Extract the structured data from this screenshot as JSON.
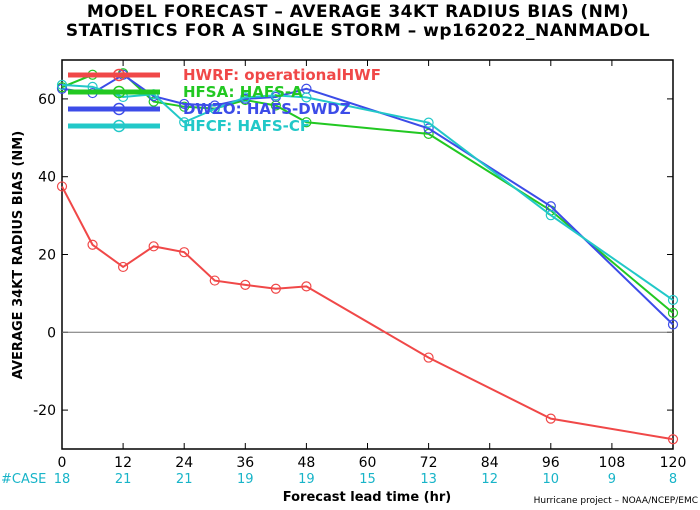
{
  "chart_data": {
    "type": "line",
    "title": "MODEL FORECAST – AVERAGE 34KT RADIUS BIAS (NM)",
    "subtitle": "STATISTICS FOR A SINGLE STORM – wp162022_NANMADOL",
    "xlabel": "Forecast lead time (hr)",
    "ylabel": "AVERAGE 34KT RADIUS BIAS (NM)",
    "xlim": [
      0,
      120
    ],
    "ylim": [
      -30,
      70
    ],
    "x_ticks": [
      0,
      12,
      24,
      36,
      48,
      60,
      72,
      84,
      96,
      108,
      120
    ],
    "y_ticks": [
      -20,
      0,
      20,
      40,
      60
    ],
    "case_label": "#CASE",
    "case_counts": [
      "18",
      "21",
      "21",
      "19",
      "19",
      "15",
      "13",
      "12",
      "10",
      "9",
      "8"
    ],
    "footer": "Hurricane project – NOAA/NCEP/EMC",
    "series": [
      {
        "name": "HWRF: operationalHWF",
        "color": "#f04848",
        "x": [
          0,
          6,
          12,
          18,
          24,
          30,
          36,
          42,
          48,
          72,
          96,
          120
        ],
        "y": [
          37.5,
          22.5,
          16.8,
          22.1,
          20.6,
          13.3,
          12.2,
          11.2,
          11.8,
          -6.5,
          -22.2,
          -27.5
        ]
      },
      {
        "name": "HFSA: HAFS-A",
        "color": "#22c822",
        "x": [
          0,
          6,
          12,
          18,
          24,
          30,
          36,
          42,
          48,
          72,
          96,
          120
        ],
        "y": [
          63.0,
          66.2,
          66.6,
          59.3,
          58.0,
          57.5,
          59.7,
          58.3,
          54.0,
          51.0,
          31.3,
          5.0
        ]
      },
      {
        "name": "DWZO: HAFS-DWDZ",
        "color": "#3c4ce8",
        "x": [
          0,
          6,
          12,
          18,
          24,
          30,
          36,
          42,
          48,
          72,
          96,
          120
        ],
        "y": [
          62.6,
          61.5,
          66.2,
          60.7,
          58.7,
          58.3,
          60.0,
          60.5,
          62.6,
          52.4,
          32.4,
          2.0
        ]
      },
      {
        "name": "HFCF: HAFS-CF",
        "color": "#22c8c8",
        "x": [
          0,
          6,
          12,
          18,
          24,
          30,
          36,
          42,
          48,
          72,
          96,
          120
        ],
        "y": [
          63.6,
          63.1,
          60.5,
          61.2,
          54.0,
          57.4,
          60.4,
          60.9,
          60.4,
          53.9,
          30.1,
          8.3
        ]
      }
    ],
    "zero_line": true,
    "legend_position": "top-left"
  }
}
